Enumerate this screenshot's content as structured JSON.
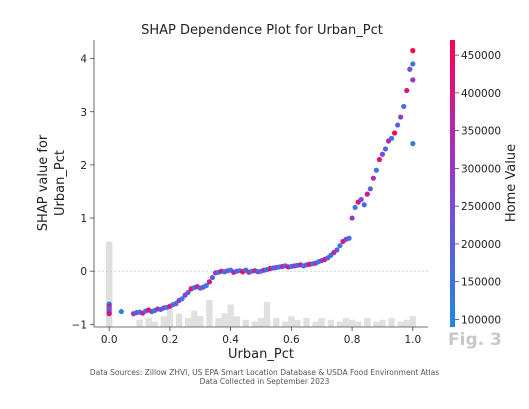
{
  "chart_data": {
    "type": "scatter",
    "title": "SHAP Dependence Plot for Urban_Pct",
    "xlabel": "Urban_Pct",
    "ylabel_lines": [
      "SHAP value for",
      "Urban_Pct"
    ],
    "xlim": [
      -0.05,
      1.05
    ],
    "ylim": [
      -1.05,
      4.35
    ],
    "xticks": [
      "0.0",
      "0.2",
      "0.4",
      "0.6",
      "0.8",
      "1.0"
    ],
    "yticks": [
      "−1",
      "0",
      "1",
      "2",
      "3",
      "4"
    ],
    "colorbar": {
      "label": "Home Value",
      "range": [
        90000,
        470000
      ],
      "ticks": [
        "100000",
        "150000",
        "200000",
        "250000",
        "300000",
        "350000",
        "400000",
        "450000"
      ],
      "low_color": "#1e88e5",
      "mid_color": "#8b3fd9",
      "high_color": "#ff0052"
    },
    "points": [
      [
        0.0,
        -0.62,
        120000
      ],
      [
        0.0,
        -0.66,
        400000
      ],
      [
        0.0,
        -0.7,
        150000
      ],
      [
        0.0,
        -0.74,
        260000
      ],
      [
        0.0,
        -0.78,
        180000
      ],
      [
        0.0,
        -0.8,
        420000
      ],
      [
        0.04,
        -0.76,
        110000
      ],
      [
        0.08,
        -0.8,
        300000
      ],
      [
        0.09,
        -0.78,
        200000
      ],
      [
        0.1,
        -0.77,
        140000
      ],
      [
        0.11,
        -0.79,
        380000
      ],
      [
        0.12,
        -0.75,
        160000
      ],
      [
        0.13,
        -0.73,
        440000
      ],
      [
        0.14,
        -0.76,
        230000
      ],
      [
        0.15,
        -0.74,
        120000
      ],
      [
        0.16,
        -0.71,
        350000
      ],
      [
        0.17,
        -0.72,
        180000
      ],
      [
        0.18,
        -0.69,
        270000
      ],
      [
        0.19,
        -0.68,
        130000
      ],
      [
        0.2,
        -0.66,
        410000
      ],
      [
        0.21,
        -0.63,
        210000
      ],
      [
        0.22,
        -0.61,
        150000
      ],
      [
        0.23,
        -0.55,
        330000
      ],
      [
        0.24,
        -0.52,
        110000
      ],
      [
        0.25,
        -0.45,
        290000
      ],
      [
        0.26,
        -0.4,
        190000
      ],
      [
        0.27,
        -0.33,
        450000
      ],
      [
        0.28,
        -0.31,
        140000
      ],
      [
        0.29,
        -0.29,
        360000
      ],
      [
        0.3,
        -0.32,
        170000
      ],
      [
        0.31,
        -0.3,
        250000
      ],
      [
        0.32,
        -0.27,
        120000
      ],
      [
        0.33,
        -0.2,
        400000
      ],
      [
        0.34,
        -0.12,
        200000
      ],
      [
        0.35,
        -0.03,
        310000
      ],
      [
        0.36,
        -0.02,
        130000
      ],
      [
        0.37,
        0.0,
        420000
      ],
      [
        0.38,
        -0.01,
        160000
      ],
      [
        0.39,
        0.01,
        280000
      ],
      [
        0.4,
        0.02,
        110000
      ],
      [
        0.41,
        -0.02,
        370000
      ],
      [
        0.42,
        0.0,
        220000
      ],
      [
        0.43,
        0.01,
        140000
      ],
      [
        0.44,
        -0.01,
        460000
      ],
      [
        0.45,
        0.02,
        190000
      ],
      [
        0.46,
        -0.02,
        300000
      ],
      [
        0.47,
        0.0,
        120000
      ],
      [
        0.48,
        0.01,
        390000
      ],
      [
        0.49,
        -0.01,
        240000
      ],
      [
        0.5,
        0.0,
        150000
      ],
      [
        0.51,
        0.02,
        330000
      ],
      [
        0.52,
        0.03,
        110000
      ],
      [
        0.53,
        0.05,
        430000
      ],
      [
        0.54,
        0.06,
        180000
      ],
      [
        0.55,
        0.07,
        260000
      ],
      [
        0.56,
        0.08,
        130000
      ],
      [
        0.57,
        0.09,
        350000
      ],
      [
        0.58,
        0.1,
        200000
      ],
      [
        0.59,
        0.08,
        410000
      ],
      [
        0.6,
        0.09,
        140000
      ],
      [
        0.61,
        0.1,
        290000
      ],
      [
        0.62,
        0.11,
        170000
      ],
      [
        0.63,
        0.12,
        380000
      ],
      [
        0.64,
        0.1,
        120000
      ],
      [
        0.65,
        0.12,
        240000
      ],
      [
        0.66,
        0.13,
        450000
      ],
      [
        0.67,
        0.14,
        160000
      ],
      [
        0.68,
        0.15,
        320000
      ],
      [
        0.69,
        0.18,
        110000
      ],
      [
        0.7,
        0.2,
        270000
      ],
      [
        0.71,
        0.22,
        400000
      ],
      [
        0.72,
        0.25,
        190000
      ],
      [
        0.73,
        0.3,
        140000
      ],
      [
        0.74,
        0.35,
        360000
      ],
      [
        0.75,
        0.4,
        220000
      ],
      [
        0.76,
        0.48,
        130000
      ],
      [
        0.77,
        0.56,
        430000
      ],
      [
        0.78,
        0.6,
        250000
      ],
      [
        0.79,
        0.62,
        170000
      ],
      [
        0.8,
        1.0,
        310000
      ],
      [
        0.81,
        1.2,
        120000
      ],
      [
        0.82,
        1.3,
        440000
      ],
      [
        0.83,
        1.35,
        230000
      ],
      [
        0.84,
        1.25,
        150000
      ],
      [
        0.85,
        1.45,
        380000
      ],
      [
        0.86,
        1.55,
        200000
      ],
      [
        0.87,
        1.75,
        330000
      ],
      [
        0.88,
        1.9,
        140000
      ],
      [
        0.89,
        2.1,
        420000
      ],
      [
        0.9,
        2.2,
        260000
      ],
      [
        0.91,
        2.3,
        180000
      ],
      [
        0.92,
        2.45,
        350000
      ],
      [
        0.93,
        2.5,
        120000
      ],
      [
        0.94,
        2.6,
        460000
      ],
      [
        0.95,
        2.75,
        210000
      ],
      [
        0.96,
        2.9,
        300000
      ],
      [
        0.97,
        3.1,
        160000
      ],
      [
        0.98,
        3.4,
        400000
      ],
      [
        0.99,
        3.8,
        230000
      ],
      [
        1.0,
        4.15,
        470000
      ],
      [
        1.0,
        3.9,
        140000
      ],
      [
        1.0,
        3.6,
        300000
      ],
      [
        1.0,
        2.4,
        110000
      ]
    ],
    "histogram": [
      [
        0.0,
        0.95
      ],
      [
        0.1,
        0.08
      ],
      [
        0.13,
        0.1
      ],
      [
        0.15,
        0.06
      ],
      [
        0.18,
        0.12
      ],
      [
        0.2,
        0.2
      ],
      [
        0.23,
        0.15
      ],
      [
        0.26,
        0.1
      ],
      [
        0.28,
        0.18
      ],
      [
        0.3,
        0.12
      ],
      [
        0.33,
        0.3
      ],
      [
        0.36,
        0.1
      ],
      [
        0.38,
        0.15
      ],
      [
        0.4,
        0.25
      ],
      [
        0.42,
        0.12
      ],
      [
        0.45,
        0.08
      ],
      [
        0.48,
        0.06
      ],
      [
        0.5,
        0.1
      ],
      [
        0.52,
        0.28
      ],
      [
        0.55,
        0.1
      ],
      [
        0.58,
        0.06
      ],
      [
        0.6,
        0.12
      ],
      [
        0.62,
        0.08
      ],
      [
        0.65,
        0.1
      ],
      [
        0.68,
        0.06
      ],
      [
        0.7,
        0.1
      ],
      [
        0.73,
        0.08
      ],
      [
        0.76,
        0.06
      ],
      [
        0.78,
        0.1
      ],
      [
        0.8,
        0.08
      ],
      [
        0.82,
        0.06
      ],
      [
        0.85,
        0.1
      ],
      [
        0.88,
        0.06
      ],
      [
        0.9,
        0.08
      ],
      [
        0.93,
        0.1
      ],
      [
        0.96,
        0.06
      ],
      [
        0.98,
        0.08
      ],
      [
        1.0,
        0.12
      ]
    ]
  },
  "figure_label": "Fig. 3",
  "source_lines": [
    "Data Sources: Zillow ZHVI, US EPA Smart Location Database & USDA Food Environment Atlas",
    "Data Collected in September 2023"
  ]
}
